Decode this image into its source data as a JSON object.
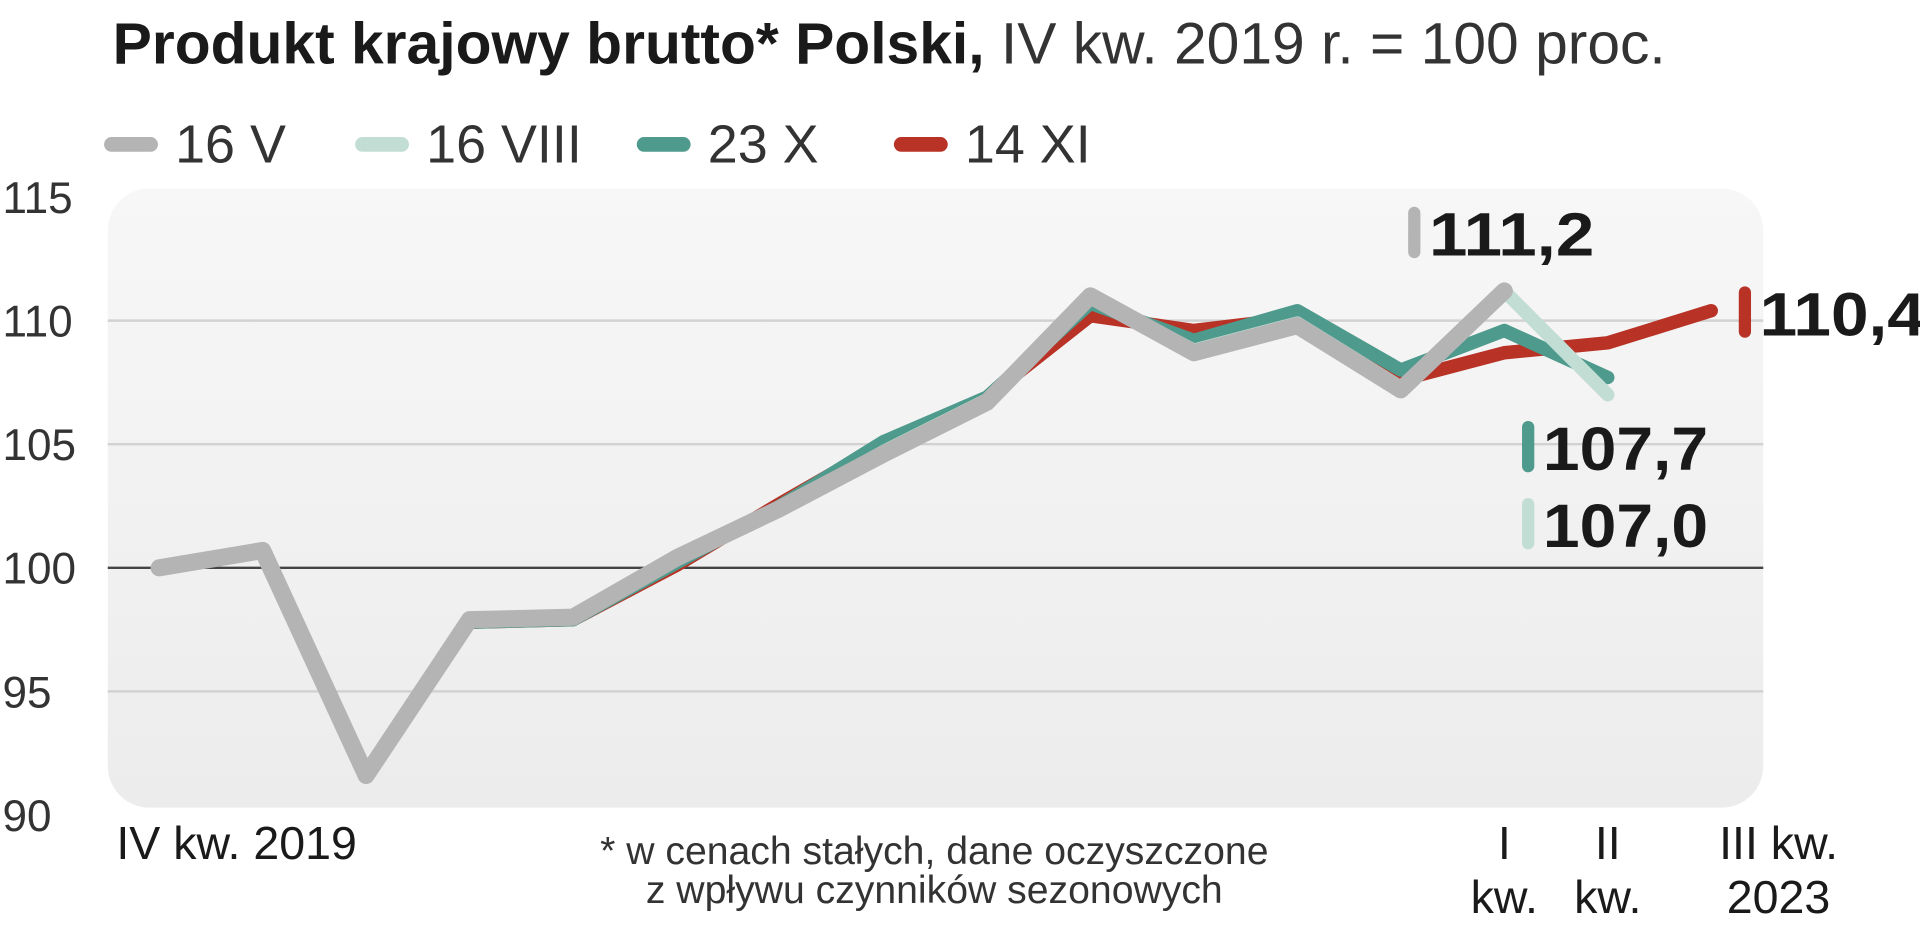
{
  "chart_data": {
    "type": "line",
    "title": "Produkt krajowy brutto* Polski,",
    "subtitle": "IV kw. 2019 r. = 100 proc.",
    "note": [
      "* w cenach stałych, dane oczyszczone",
      "z wpływu czynników sezonowych"
    ],
    "categories": [
      "IV kw. 2019",
      null,
      null,
      null,
      null,
      null,
      null,
      null,
      null,
      null,
      null,
      null,
      null,
      "I kw.",
      "II kw.",
      "III kw. 2023"
    ],
    "ylim": [
      90,
      115
    ],
    "yticks": [
      90,
      95,
      100,
      105,
      110,
      115
    ],
    "grid": true,
    "series": [
      {
        "name": "16 V",
        "color": "#b4b4b4",
        "values": [
          100.0,
          100.7,
          91.6,
          97.9,
          98.0,
          100.4,
          102.4,
          104.6,
          106.7,
          111.0,
          108.7,
          109.8,
          107.2,
          111.2,
          null,
          null
        ],
        "value_labels": [
          null,
          null,
          null,
          null,
          null,
          null,
          null,
          null,
          null,
          null,
          null,
          null,
          null,
          "111,2",
          null,
          null
        ]
      },
      {
        "name": "16 VIII",
        "color": "#c2ddd4",
        "values": [
          100.0,
          100.7,
          91.6,
          97.9,
          98.0,
          100.4,
          102.4,
          104.7,
          106.8,
          111.0,
          108.8,
          109.9,
          107.3,
          111.2,
          107.0,
          null
        ],
        "value_labels": [
          null,
          null,
          null,
          null,
          null,
          null,
          null,
          null,
          null,
          null,
          null,
          null,
          null,
          null,
          "107,0",
          null
        ]
      },
      {
        "name": "23 X",
        "color": "#4e9a8c",
        "values": [
          100.0,
          100.7,
          91.6,
          97.8,
          97.9,
          100.2,
          102.5,
          105.1,
          106.9,
          110.7,
          109.2,
          110.4,
          108.0,
          109.6,
          107.7,
          null
        ],
        "value_labels": [
          null,
          null,
          null,
          null,
          null,
          null,
          null,
          null,
          null,
          null,
          null,
          null,
          null,
          null,
          "107,7",
          null
        ]
      },
      {
        "name": "14 XI",
        "color": "#b83226",
        "values": [
          100.0,
          100.7,
          91.6,
          97.8,
          97.9,
          100.1,
          102.6,
          105.0,
          106.9,
          110.2,
          109.6,
          110.1,
          107.6,
          108.7,
          109.1,
          110.4
        ],
        "value_labels": [
          null,
          null,
          null,
          null,
          null,
          null,
          null,
          null,
          null,
          null,
          null,
          null,
          null,
          null,
          null,
          "110,4"
        ]
      }
    ]
  }
}
